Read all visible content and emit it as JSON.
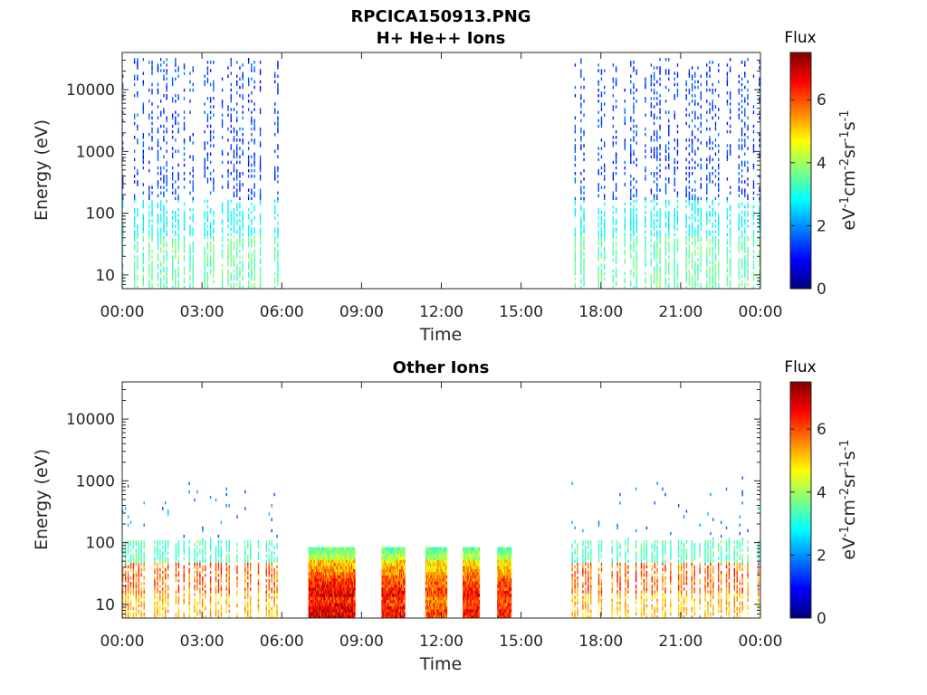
{
  "figure_title": "RPCICA150913.PNG",
  "colors": {
    "colormap": [
      "#00007f",
      "#0000ff",
      "#007fff",
      "#00ffff",
      "#7fff7f",
      "#ffff00",
      "#ff7f00",
      "#ff0000",
      "#7f0000"
    ],
    "axes": "#262626"
  },
  "chart_data": [
    {
      "type": "heatmap",
      "title": "H+ He++ Ions",
      "xlabel": "Time",
      "ylabel": "Energy (eV)",
      "y_scale": "log",
      "ylim": [
        6,
        40000
      ],
      "xlim_hours": [
        0,
        24
      ],
      "x_ticks": [
        "00:00",
        "03:00",
        "06:00",
        "09:00",
        "12:00",
        "15:00",
        "18:00",
        "21:00",
        "00:00"
      ],
      "y_ticks": [
        "10",
        "100",
        "1000",
        "10000"
      ],
      "colorbar": {
        "title": "Flux",
        "label": "eV-1cm-2sr-1s-1",
        "range": [
          0,
          7.5
        ],
        "ticks": [
          "0",
          "2",
          "4",
          "6"
        ]
      },
      "data_gaps_hours": [
        [
          5.85,
          16.9
        ]
      ],
      "intervals": [
        {
          "start_hour": 0.0,
          "end_hour": 5.85,
          "energy_range_eV": [
            6,
            30000
          ],
          "flux_low_energy": 2.8,
          "flux_high_energy": 1.0
        },
        {
          "start_hour": 16.9,
          "end_hour": 24.0,
          "energy_range_eV": [
            6,
            30000
          ],
          "flux_low_energy": 2.8,
          "flux_high_energy": 1.0
        }
      ]
    },
    {
      "type": "heatmap",
      "title": "Other Ions",
      "xlabel": "Time",
      "ylabel": "Energy (eV)",
      "y_scale": "log",
      "ylim": [
        6,
        40000
      ],
      "xlim_hours": [
        0,
        24
      ],
      "x_ticks": [
        "00:00",
        "03:00",
        "06:00",
        "09:00",
        "12:00",
        "15:00",
        "18:00",
        "21:00",
        "00:00"
      ],
      "y_ticks": [
        "10",
        "100",
        "1000",
        "10000"
      ],
      "colorbar": {
        "title": "Flux",
        "label": "eV-1cm-2sr-1s-1",
        "range": [
          0,
          7.5
        ],
        "ticks": [
          "0",
          "2",
          "4",
          "6"
        ]
      },
      "data_gaps_hours": [
        [
          5.85,
          7.0
        ],
        [
          14.6,
          16.9
        ]
      ],
      "intervals": [
        {
          "start_hour": 0.0,
          "end_hour": 5.85,
          "energy_range_eV": [
            6,
            1500
          ],
          "flux_low_energy": 5.0,
          "flux_high_energy": 1.5
        },
        {
          "start_hour": 7.0,
          "end_hour": 8.75,
          "energy_range_eV": [
            6,
            80
          ],
          "flux_low_energy": 6.8,
          "flux_high_energy": 3.5
        },
        {
          "start_hour": 9.75,
          "end_hour": 10.6,
          "energy_range_eV": [
            6,
            80
          ],
          "flux_low_energy": 6.5,
          "flux_high_energy": 3.5
        },
        {
          "start_hour": 11.4,
          "end_hour": 12.2,
          "energy_range_eV": [
            6,
            80
          ],
          "flux_low_energy": 6.0,
          "flux_high_energy": 3.5
        },
        {
          "start_hour": 12.8,
          "end_hour": 13.4,
          "energy_range_eV": [
            6,
            80
          ],
          "flux_low_energy": 6.5,
          "flux_high_energy": 3.5
        },
        {
          "start_hour": 14.1,
          "end_hour": 14.6,
          "energy_range_eV": [
            6,
            80
          ],
          "flux_low_energy": 6.3,
          "flux_high_energy": 3.5
        },
        {
          "start_hour": 16.9,
          "end_hour": 24.0,
          "energy_range_eV": [
            6,
            1500
          ],
          "flux_low_energy": 5.0,
          "flux_high_energy": 1.5
        }
      ]
    }
  ]
}
